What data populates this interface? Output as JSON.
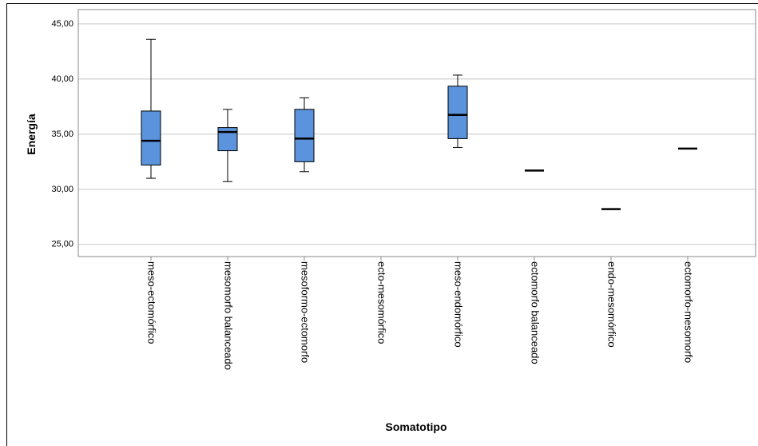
{
  "chart_data": {
    "type": "box",
    "y_label": "Energía",
    "x_label": "Somatotipo",
    "categories": [
      "meso-ectomórfico",
      "mesomorfo balanceado",
      "mesoformo-ectomorfo",
      "ecto-mesomórfico",
      "meso-endomórfico",
      "ectomorfo balanceado",
      "endo-mesomórfico",
      "ectomorfo-mesomorfo"
    ],
    "min": [
      31.0,
      30.7,
      31.6,
      null,
      33.8,
      null,
      null,
      null
    ],
    "q1": [
      32.2,
      33.5,
      32.5,
      null,
      34.6,
      null,
      null,
      null
    ],
    "median": [
      34.4,
      35.2,
      34.6,
      null,
      36.75,
      31.7,
      28.2,
      33.7
    ],
    "q3": [
      37.1,
      35.6,
      37.25,
      null,
      39.35,
      null,
      null,
      null
    ],
    "max": [
      43.6,
      37.25,
      38.3,
      null,
      40.36,
      null,
      null,
      null
    ],
    "color": "#5b93dc",
    "ylim": [
      23.9,
      46.3
    ],
    "yticks": [
      {
        "value": 25,
        "label": "25,00"
      },
      {
        "value": 30,
        "label": "30,00"
      },
      {
        "value": 35,
        "label": "35,00"
      },
      {
        "value": 40,
        "label": "40,00"
      },
      {
        "value": 45,
        "label": "45,00"
      }
    ],
    "grid": true
  }
}
